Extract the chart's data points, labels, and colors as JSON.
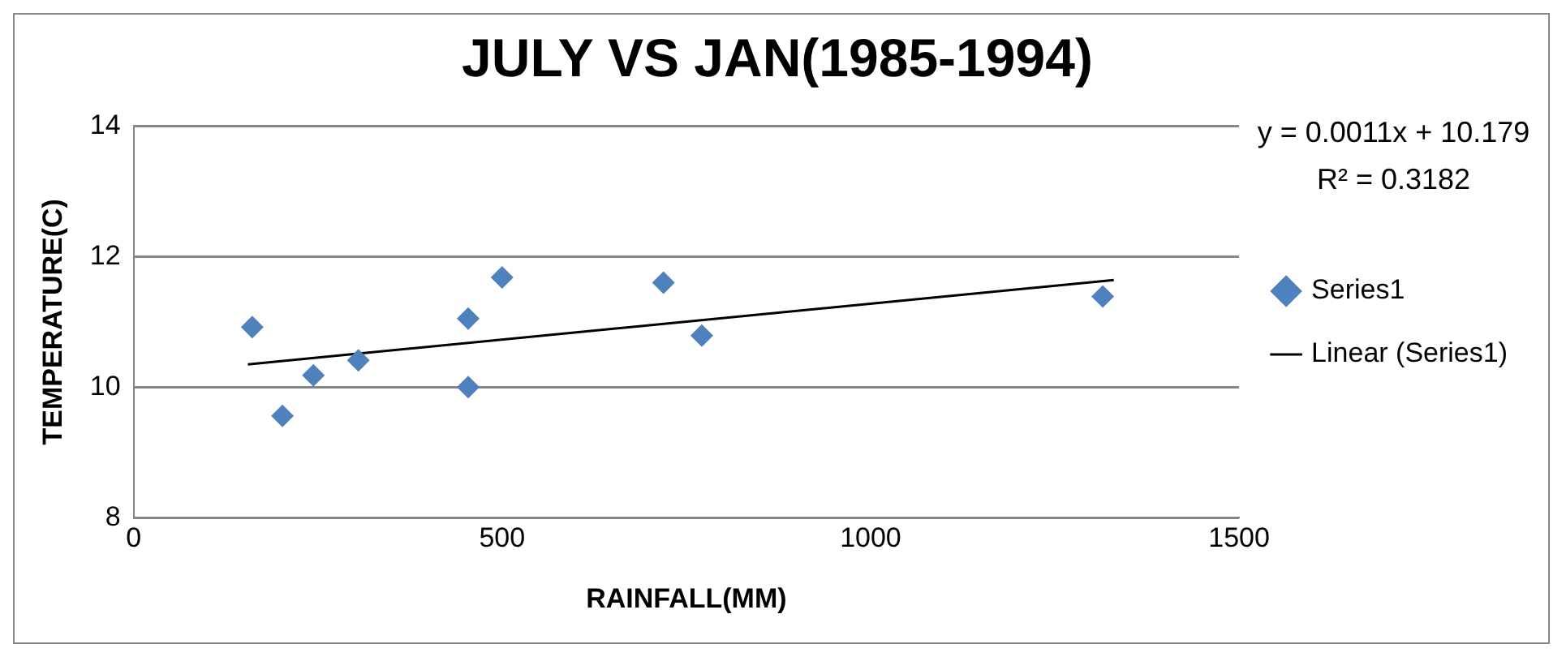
{
  "chart_data": {
    "type": "scatter",
    "title": "JULY VS JAN(1985-1994)",
    "xlabel": "RAINFALL(MM)",
    "ylabel": "TEMPERATURE(C)",
    "xlim": [
      0,
      1500
    ],
    "xticks": [
      0,
      500,
      1000,
      1500
    ],
    "ylim": [
      8,
      14
    ],
    "yticks": [
      8,
      10,
      12,
      14
    ],
    "grid": "y",
    "legend": "right",
    "marker": "diamond",
    "annotations": [
      "y = 0.0011x + 10.179",
      "R² = 0.3182"
    ],
    "series": [
      {
        "name": "Series1",
        "type": "scatter",
        "color": "#4f81bd",
        "x": [
          161,
          202,
          244,
          305,
          454,
          454,
          500,
          719,
          771,
          1315
        ],
        "values": [
          10.92,
          9.56,
          10.18,
          10.41,
          11.05,
          10.0,
          11.68,
          11.6,
          10.79,
          11.39
        ]
      },
      {
        "name": "Linear (Series1)",
        "type": "line",
        "marker": "none",
        "color": "#000000",
        "x": [
          155,
          1330
        ],
        "values": [
          10.35,
          11.64
        ]
      }
    ]
  }
}
